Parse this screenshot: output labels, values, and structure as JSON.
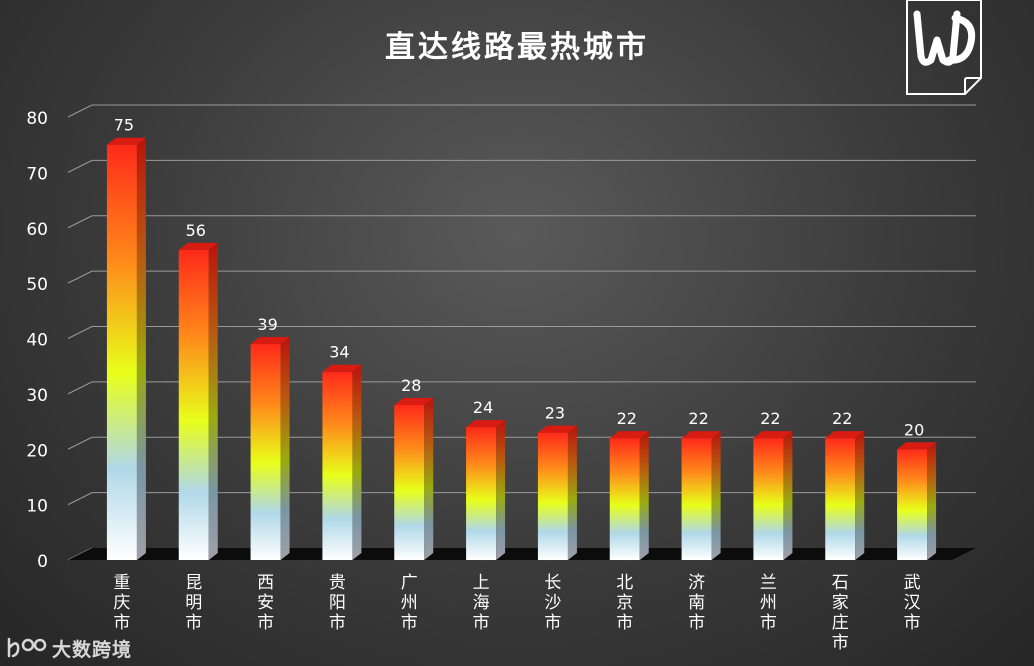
{
  "title": "直达线路最热城市",
  "watermark": {
    "text": "大数跨境"
  },
  "colors": {
    "background": "#3a3a3a",
    "grid": "#9a9a9a",
    "text": "#ffffff",
    "bar_top": "#ff2a1a",
    "bar_mid": "#e8ff1a",
    "bar_bottom": "#ffffff"
  },
  "chart_data": {
    "type": "bar",
    "title": "直达线路最热城市",
    "categories": [
      "重庆市",
      "昆明市",
      "西安市",
      "贵阳市",
      "广州市",
      "上海市",
      "长沙市",
      "北京市",
      "济南市",
      "兰州市",
      "石家庄市",
      "武汉市"
    ],
    "values": [
      75,
      56,
      39,
      34,
      28,
      24,
      23,
      22,
      22,
      22,
      22,
      20
    ],
    "ylim": [
      0,
      80
    ],
    "yticks": [
      0,
      10,
      20,
      30,
      40,
      50,
      60,
      70,
      80
    ],
    "xlabel": "",
    "ylabel": "",
    "grid": true,
    "data_labels": true
  }
}
